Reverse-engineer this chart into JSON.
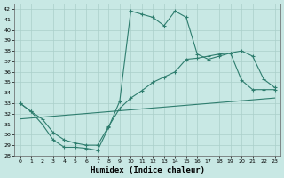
{
  "xlabel": "Humidex (Indice chaleur)",
  "xlim": [
    -0.5,
    23.5
  ],
  "ylim": [
    28,
    42.5
  ],
  "yticks": [
    28,
    29,
    30,
    31,
    32,
    33,
    34,
    35,
    36,
    37,
    38,
    39,
    40,
    41,
    42
  ],
  "xticks": [
    0,
    1,
    2,
    3,
    4,
    5,
    6,
    7,
    8,
    9,
    10,
    11,
    12,
    13,
    14,
    15,
    16,
    17,
    18,
    19,
    20,
    21,
    22,
    23
  ],
  "bg_color": "#c8e8e4",
  "line_color": "#2e7d6e",
  "grid_color": "#aacfca",
  "line1_x": [
    0,
    1,
    2,
    3,
    4,
    5,
    6,
    7,
    8,
    9,
    10,
    11,
    12,
    13,
    14,
    15,
    16,
    17,
    18,
    19,
    20,
    21,
    22,
    23
  ],
  "line1_y": [
    33.0,
    32.2,
    31.0,
    29.5,
    28.8,
    28.8,
    28.7,
    28.5,
    30.7,
    33.2,
    41.8,
    41.5,
    41.2,
    40.4,
    41.8,
    41.2,
    37.7,
    37.2,
    37.5,
    37.8,
    35.2,
    34.3,
    34.3,
    34.3
  ],
  "line2_x": [
    0,
    1,
    2,
    3,
    4,
    5,
    6,
    7,
    8,
    9,
    10,
    11,
    12,
    13,
    14,
    15,
    16,
    17,
    18,
    19,
    20,
    21,
    22,
    23
  ],
  "line2_y": [
    33.0,
    32.2,
    31.5,
    30.2,
    29.5,
    29.2,
    29.0,
    29.0,
    30.8,
    32.5,
    33.5,
    34.2,
    35.0,
    35.5,
    36.0,
    37.2,
    37.3,
    37.5,
    37.7,
    37.8,
    38.0,
    37.5,
    35.3,
    34.5
  ],
  "line3_x": [
    0,
    23
  ],
  "line3_y": [
    31.5,
    33.5
  ]
}
